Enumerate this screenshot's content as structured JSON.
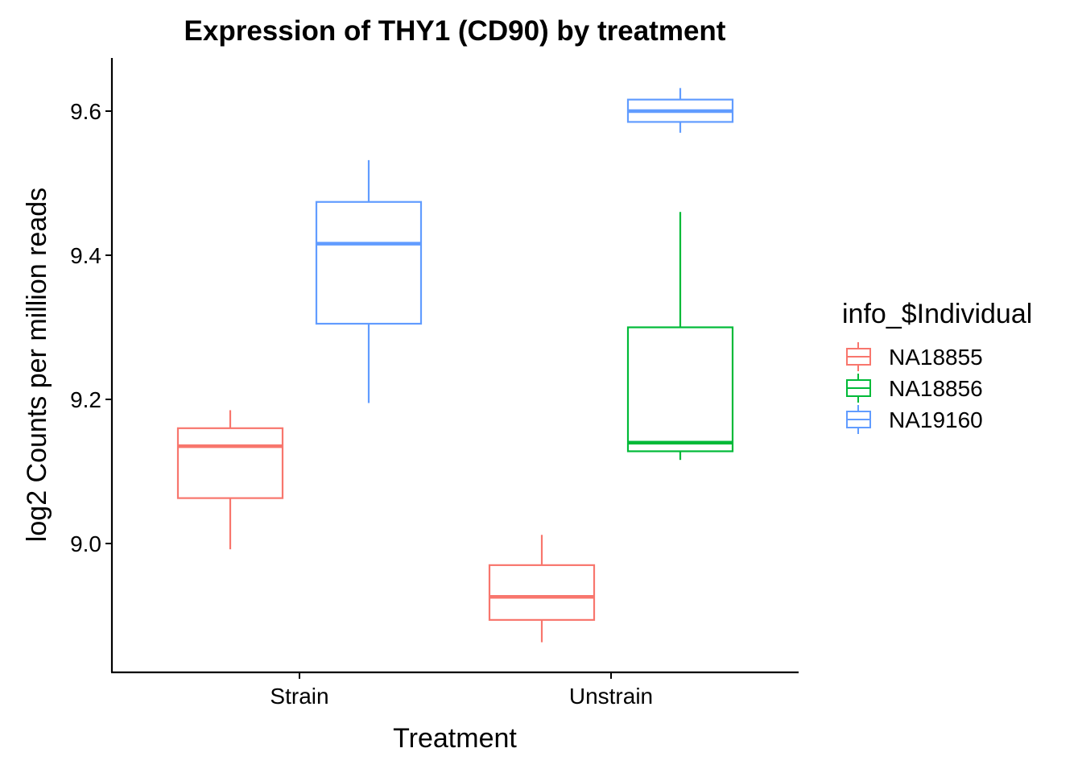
{
  "chart_data": {
    "type": "boxplot",
    "title": "Expression of THY1 (CD90) by treatment",
    "xlabel": "Treatment",
    "ylabel": "log2 Counts per million reads",
    "categories": [
      "Strain",
      "Unstrain"
    ],
    "yticks": [
      "9.0",
      "9.2",
      "9.4",
      "9.6"
    ],
    "ylim": [
      8.825,
      9.67
    ],
    "grid": false,
    "legend": {
      "title": "info_$Individual",
      "placement": "right",
      "entries": [
        "NA18855",
        "NA18856",
        "NA19160"
      ]
    },
    "series": [
      {
        "name": "NA18855",
        "color": "#F8766D",
        "boxes": [
          {
            "category": "Strain",
            "min": 8.992,
            "q1": 9.063,
            "median": 9.135,
            "q3": 9.16,
            "max": 9.185
          },
          {
            "category": "Unstrain",
            "min": 8.863,
            "q1": 8.894,
            "median": 8.926,
            "q3": 8.97,
            "max": 9.012
          }
        ]
      },
      {
        "name": "NA18856",
        "color": "#00BA38",
        "boxes": [
          {
            "category": "Unstrain",
            "min": 9.116,
            "q1": 9.128,
            "median": 9.14,
            "q3": 9.3,
            "max": 9.46
          }
        ]
      },
      {
        "name": "NA19160",
        "color": "#619CFF",
        "boxes": [
          {
            "category": "Strain",
            "min": 9.195,
            "q1": 9.305,
            "median": 9.416,
            "q3": 9.474,
            "max": 9.532
          },
          {
            "category": "Unstrain",
            "min": 9.57,
            "q1": 9.585,
            "median": 9.6,
            "q3": 9.616,
            "max": 9.632
          }
        ]
      }
    ]
  }
}
